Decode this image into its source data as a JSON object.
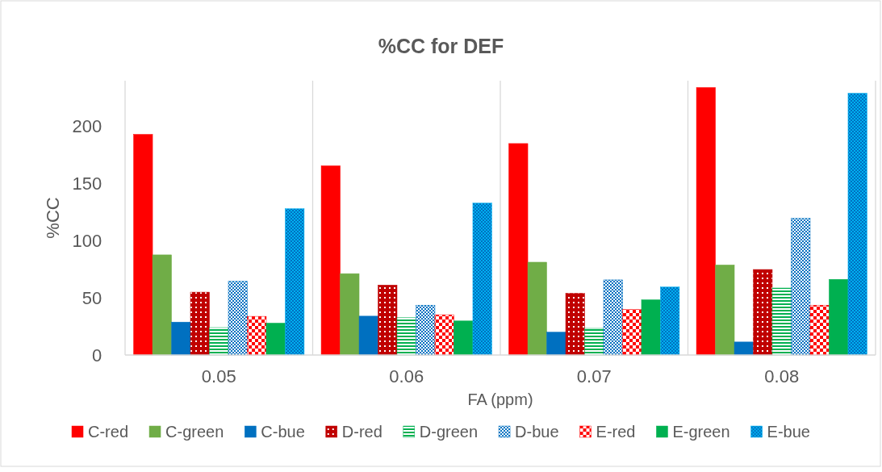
{
  "chart_data": {
    "type": "bar",
    "title": "%CC for DEF",
    "xlabel": "FA (ppm)",
    "ylabel": "%CC",
    "categories": [
      "0.05",
      "0.06",
      "0.07",
      "0.08"
    ],
    "ylim": [
      0,
      240
    ],
    "yticks": [
      0,
      50,
      100,
      150,
      200
    ],
    "grid": "x",
    "legend": "bottom",
    "series": [
      {
        "name": "C-red",
        "color": "#ff0000",
        "values": [
          193,
          165.5,
          185,
          234
        ]
      },
      {
        "name": "C-green",
        "color": "#70ad47",
        "values": [
          87.6,
          71.2,
          81.2,
          78.8
        ]
      },
      {
        "name": "C-bue",
        "color": "#0070c0",
        "values": [
          28.8,
          34,
          20,
          11.4
        ]
      },
      {
        "name": "D-red",
        "color": "#c00000",
        "values": [
          55,
          61.2,
          54,
          74.8
        ]
      },
      {
        "name": "D-green",
        "color": "#00b050",
        "values": [
          24,
          32.6,
          23.3,
          58.6
        ]
      },
      {
        "name": "D-bue",
        "color": "#0070c0",
        "values": [
          64.5,
          43.6,
          65.7,
          119.5
        ]
      },
      {
        "name": "E-red",
        "color": "#ff0000",
        "values": [
          33.8,
          35.2,
          39.8,
          43.6
        ]
      },
      {
        "name": "E-green",
        "color": "#00b050",
        "values": [
          27.9,
          29.8,
          48.3,
          66.2
        ]
      },
      {
        "name": "E-bue",
        "color": "#00b0f0",
        "values": [
          128,
          132.9,
          59.5,
          229
        ]
      }
    ]
  }
}
